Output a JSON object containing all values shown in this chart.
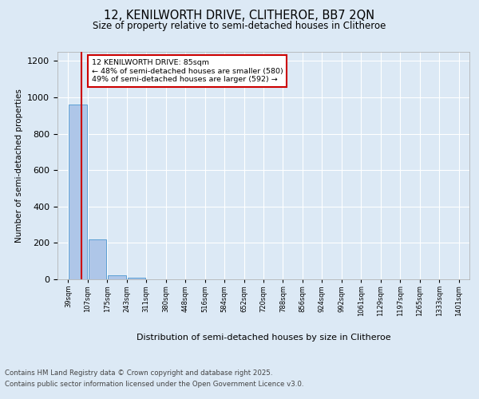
{
  "title_line1": "12, KENILWORTH DRIVE, CLITHEROE, BB7 2QN",
  "title_line2": "Size of property relative to semi-detached houses in Clitheroe",
  "xlabel": "Distribution of semi-detached houses by size in Clitheroe",
  "ylabel": "Number of semi-detached properties",
  "annotation_title": "12 KENILWORTH DRIVE: 85sqm",
  "annotation_line2": "← 48% of semi-detached houses are smaller (580)",
  "annotation_line3": "49% of semi-detached houses are larger (592) →",
  "footer_line1": "Contains HM Land Registry data © Crown copyright and database right 2025.",
  "footer_line2": "Contains public sector information licensed under the Open Government Licence v3.0.",
  "bin_labels": [
    "39sqm",
    "107sqm",
    "175sqm",
    "243sqm",
    "311sqm",
    "380sqm",
    "448sqm",
    "516sqm",
    "584sqm",
    "652sqm",
    "720sqm",
    "788sqm",
    "856sqm",
    "924sqm",
    "992sqm",
    "1061sqm",
    "1129sqm",
    "1197sqm",
    "1265sqm",
    "1333sqm",
    "1401sqm"
  ],
  "bin_edges": [
    39,
    107,
    175,
    243,
    311,
    380,
    448,
    516,
    584,
    652,
    720,
    788,
    856,
    924,
    992,
    1061,
    1129,
    1197,
    1265,
    1333,
    1401
  ],
  "bar_heights": [
    960,
    220,
    20,
    10,
    0,
    0,
    0,
    0,
    0,
    0,
    0,
    0,
    0,
    0,
    0,
    0,
    0,
    0,
    0,
    0
  ],
  "bar_color": "#aec6e8",
  "bar_edge_color": "#5a9fd4",
  "property_size": 85,
  "red_line_color": "#cc0000",
  "annotation_box_edge_color": "#cc0000",
  "ylim": [
    0,
    1250
  ],
  "background_color": "#dce9f5",
  "plot_bg_color": "#dce9f5",
  "grid_color": "#ffffff"
}
